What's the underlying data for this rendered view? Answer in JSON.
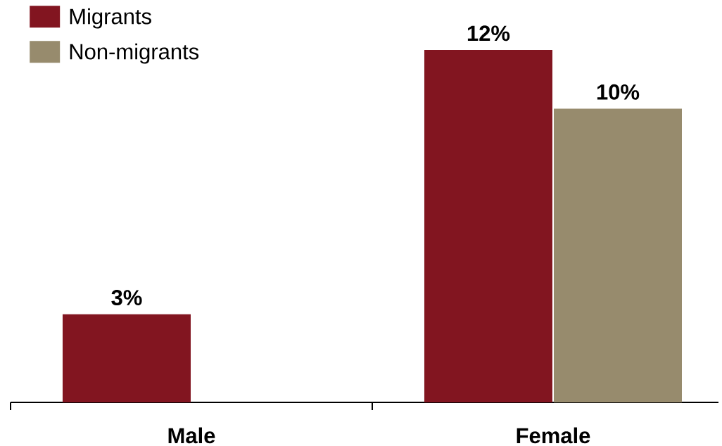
{
  "chart_data": {
    "type": "bar",
    "categories": [
      "Male",
      "Female"
    ],
    "series": [
      {
        "name": "Migrants",
        "color": "#821520",
        "values": [
          3,
          12
        ],
        "value_labels": [
          "3%",
          "12%"
        ]
      },
      {
        "name": "Non-migrants",
        "color": "#978b6d",
        "values": [
          null,
          10
        ],
        "value_labels": [
          null,
          "10%"
        ]
      }
    ],
    "legend": "top left"
  }
}
